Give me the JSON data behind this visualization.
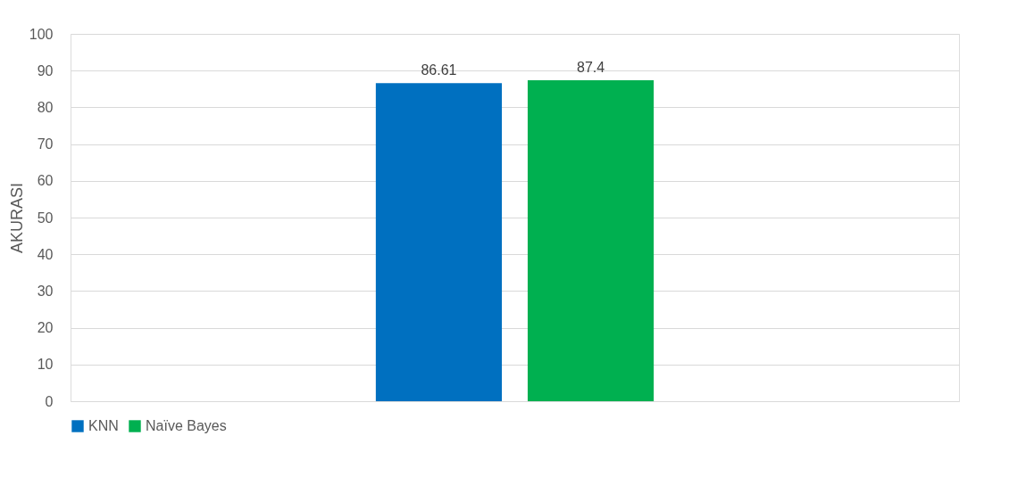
{
  "chart_data": {
    "type": "bar",
    "ylabel": "AKURASI",
    "categories": [
      null
    ],
    "series": [
      {
        "name": "KNN",
        "color": "#0070c0",
        "values": [
          86.61
        ]
      },
      {
        "name": "Naïve Bayes",
        "color": "#00b050",
        "values": [
          87.4
        ]
      }
    ],
    "ylim": [
      0,
      100
    ],
    "yticks": [
      0,
      10,
      20,
      30,
      40,
      50,
      60,
      70,
      80,
      90,
      100
    ],
    "grid": "y",
    "legend": "bottom",
    "data_labels": true
  }
}
